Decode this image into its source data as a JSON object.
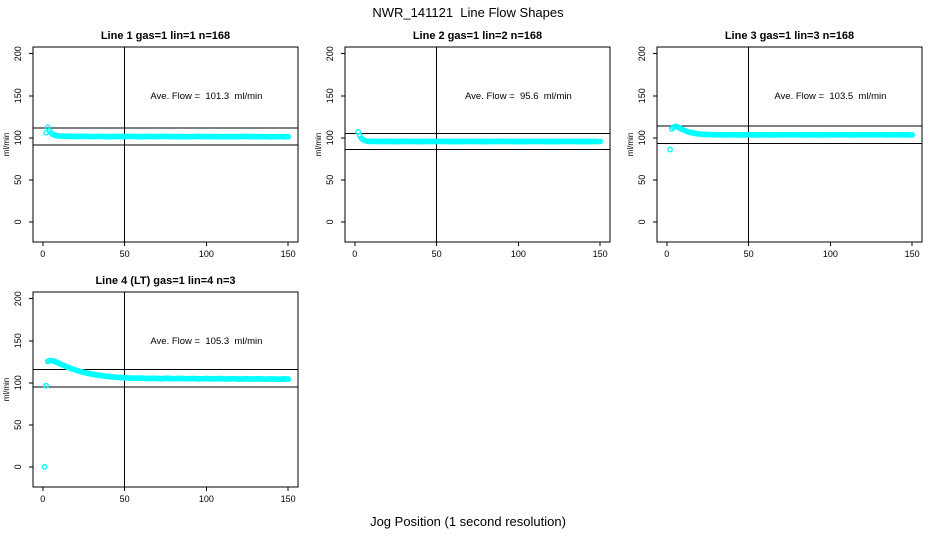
{
  "figure": {
    "title": "NWR_141121  Line Flow Shapes",
    "xlabel": "Jog Position (1 second resolution)"
  },
  "colors": {
    "points": "#00FFFF",
    "axis": "#000000",
    "background": "#FFFFFF"
  },
  "chart_data": [
    {
      "type": "scatter",
      "title": "Line 1 gas=1 lin=1 n=168",
      "ylabel": "ml/min",
      "xlim": [
        -6,
        156
      ],
      "ylim": [
        -24,
        208
      ],
      "xticks": [
        0,
        50,
        100,
        150
      ],
      "yticks": [
        0,
        50,
        100,
        150,
        200
      ],
      "ave_flow": 101.3,
      "annotation": {
        "text": "Ave. Flow =  101.3  ml/min",
        "x": 100,
        "y": 150
      },
      "ref_lines": [
        111.4,
        91.2
      ],
      "vline": 50,
      "n": 168,
      "band_points": [
        [
          2,
          106
        ],
        [
          3,
          112.5
        ],
        [
          4,
          108.5
        ],
        [
          5,
          106
        ],
        [
          6,
          104.3
        ],
        [
          7,
          103.2
        ],
        [
          8,
          102.6
        ],
        [
          10,
          102.1
        ],
        [
          12,
          101.9
        ],
        [
          15,
          101.8
        ],
        [
          20,
          101.5
        ],
        [
          25,
          101.8
        ],
        [
          30,
          101.4
        ],
        [
          35,
          101.7
        ],
        [
          40,
          101.3
        ],
        [
          45,
          101.6
        ],
        [
          50,
          101.4
        ],
        [
          55,
          101.7
        ],
        [
          60,
          101.3
        ],
        [
          65,
          101.6
        ],
        [
          70,
          101.4
        ],
        [
          75,
          101.7
        ],
        [
          80,
          101.3
        ],
        [
          85,
          101.5
        ],
        [
          90,
          101.2
        ],
        [
          95,
          101.6
        ],
        [
          100,
          101.3
        ],
        [
          105,
          101.5
        ],
        [
          110,
          101.2
        ],
        [
          115,
          101.5
        ],
        [
          120,
          101.3
        ],
        [
          125,
          101.6
        ],
        [
          130,
          101.2
        ],
        [
          135,
          101.4
        ],
        [
          140,
          101.1
        ],
        [
          145,
          101.4
        ],
        [
          150,
          101.2
        ]
      ],
      "isolated_points": []
    },
    {
      "type": "scatter",
      "title": "Line 2 gas=1 lin=2 n=168",
      "ylabel": "ml/min",
      "xlim": [
        -6,
        156
      ],
      "ylim": [
        -24,
        208
      ],
      "xticks": [
        0,
        50,
        100,
        150
      ],
      "yticks": [
        0,
        50,
        100,
        150,
        200
      ],
      "ave_flow": 95.6,
      "annotation": {
        "text": "Ave. Flow =  95.6  ml/min",
        "x": 100,
        "y": 150
      },
      "ref_lines": [
        105.2,
        86.0
      ],
      "vline": 50,
      "n": 168,
      "band_points": [
        [
          2,
          107
        ],
        [
          3,
          102.5
        ],
        [
          4,
          99.5
        ],
        [
          5,
          97.8
        ],
        [
          6,
          96.8
        ],
        [
          7,
          96.2
        ],
        [
          8,
          95.9
        ],
        [
          10,
          95.7
        ],
        [
          15,
          95.6
        ],
        [
          20,
          95.7
        ],
        [
          25,
          95.5
        ],
        [
          30,
          95.7
        ],
        [
          40,
          95.5
        ],
        [
          50,
          95.7
        ],
        [
          60,
          95.5
        ],
        [
          70,
          95.6
        ],
        [
          80,
          95.5
        ],
        [
          90,
          95.7
        ],
        [
          100,
          95.5
        ],
        [
          110,
          95.6
        ],
        [
          120,
          95.5
        ],
        [
          130,
          95.6
        ],
        [
          140,
          95.5
        ],
        [
          150,
          95.6
        ]
      ],
      "isolated_points": []
    },
    {
      "type": "scatter",
      "title": "Line 3 gas=1 lin=3 n=168",
      "ylabel": "ml/min",
      "xlim": [
        -6,
        156
      ],
      "ylim": [
        -24,
        208
      ],
      "xticks": [
        0,
        50,
        100,
        150
      ],
      "yticks": [
        0,
        50,
        100,
        150,
        200
      ],
      "ave_flow": 103.5,
      "annotation": {
        "text": "Ave. Flow =  103.5  ml/min",
        "x": 100,
        "y": 150
      },
      "ref_lines": [
        113.9,
        93.2
      ],
      "vline": 50,
      "n": 168,
      "band_points": [
        [
          3,
          110.5
        ],
        [
          4,
          112.5
        ],
        [
          5,
          113.4
        ],
        [
          6,
          113.3
        ],
        [
          7,
          112.5
        ],
        [
          8,
          111.4
        ],
        [
          9,
          110.4
        ],
        [
          10,
          109.4
        ],
        [
          11,
          108.6
        ],
        [
          12,
          107.8
        ],
        [
          13,
          107.2
        ],
        [
          14,
          106.6
        ],
        [
          15,
          106.1
        ],
        [
          16,
          105.7
        ],
        [
          18,
          105
        ],
        [
          20,
          104.5
        ],
        [
          22,
          104.2
        ],
        [
          25,
          103.9
        ],
        [
          28,
          103.7
        ],
        [
          30,
          103.6
        ],
        [
          35,
          103.5
        ],
        [
          40,
          103.6
        ],
        [
          45,
          103.4
        ],
        [
          50,
          103.6
        ],
        [
          55,
          103.4
        ],
        [
          60,
          103.6
        ],
        [
          65,
          103.4
        ],
        [
          70,
          103.6
        ],
        [
          75,
          103.5
        ],
        [
          80,
          103.7
        ],
        [
          85,
          103.4
        ],
        [
          90,
          103.6
        ],
        [
          95,
          103.4
        ],
        [
          100,
          103.7
        ],
        [
          105,
          103.5
        ],
        [
          110,
          103.6
        ],
        [
          115,
          103.4
        ],
        [
          120,
          103.6
        ],
        [
          125,
          103.5
        ],
        [
          130,
          103.7
        ],
        [
          135,
          103.4
        ],
        [
          140,
          103.6
        ],
        [
          145,
          103.5
        ],
        [
          150,
          103.5
        ]
      ],
      "isolated_points": [
        [
          2,
          86
        ]
      ]
    },
    {
      "type": "scatter",
      "title": "Line 4 (LT) gas=1 lin=4 n=3",
      "ylabel": "ml/min",
      "xlim": [
        -6,
        156
      ],
      "ylim": [
        -24,
        208
      ],
      "xticks": [
        0,
        50,
        100,
        150
      ],
      "yticks": [
        0,
        50,
        100,
        150,
        200
      ],
      "ave_flow": 105.3,
      "annotation": {
        "text": "Ave. Flow =  105.3  ml/min",
        "x": 100,
        "y": 150
      },
      "ref_lines": [
        115.8,
        94.8
      ],
      "vline": 50,
      "n": 3,
      "band_points": [
        [
          3,
          125.5
        ],
        [
          4,
          126.3
        ],
        [
          5,
          126.5
        ],
        [
          6,
          126.2
        ],
        [
          7,
          125.6
        ],
        [
          8,
          124.8
        ],
        [
          9,
          123.9
        ],
        [
          10,
          123
        ],
        [
          12,
          121.2
        ],
        [
          14,
          119.5
        ],
        [
          16,
          117.9
        ],
        [
          18,
          116.5
        ],
        [
          20,
          115.2
        ],
        [
          22,
          114
        ],
        [
          24,
          112.9
        ],
        [
          26,
          111.9
        ],
        [
          28,
          111.1
        ],
        [
          30,
          110.3
        ],
        [
          33,
          109.3
        ],
        [
          36,
          108.4
        ],
        [
          39,
          107.7
        ],
        [
          42,
          107.1
        ],
        [
          45,
          106.6
        ],
        [
          48,
          106.2
        ],
        [
          52,
          105.8
        ],
        [
          56,
          105.5
        ],
        [
          60,
          105.6
        ],
        [
          64,
          105.1
        ],
        [
          68,
          105.4
        ],
        [
          72,
          104.9
        ],
        [
          76,
          105.3
        ],
        [
          80,
          104.8
        ],
        [
          84,
          105.2
        ],
        [
          88,
          104.7
        ],
        [
          92,
          105.1
        ],
        [
          96,
          104.6
        ],
        [
          100,
          105.0
        ],
        [
          104,
          104.6
        ],
        [
          108,
          105.0
        ],
        [
          112,
          104.5
        ],
        [
          116,
          104.9
        ],
        [
          120,
          104.4
        ],
        [
          124,
          104.8
        ],
        [
          128,
          104.4
        ],
        [
          132,
          104.7
        ],
        [
          136,
          104.3
        ],
        [
          140,
          104.6
        ],
        [
          144,
          104.2
        ],
        [
          148,
          104.6
        ],
        [
          150,
          104.3
        ]
      ],
      "isolated_points": [
        [
          1,
          0
        ],
        [
          2,
          96.5
        ]
      ]
    }
  ]
}
